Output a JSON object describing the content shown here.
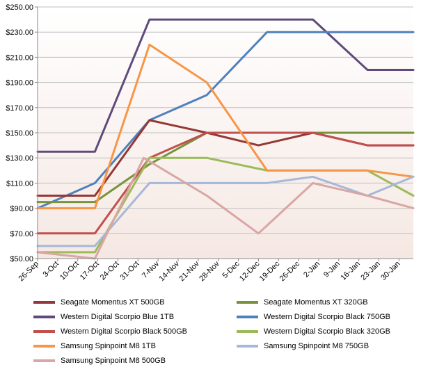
{
  "chart_data": {
    "type": "line",
    "title": "",
    "xlabel": "",
    "ylabel": "",
    "ylim": [
      50,
      250
    ],
    "y_ticks": [
      50,
      70,
      90,
      110,
      130,
      150,
      170,
      190,
      210,
      230,
      250
    ],
    "y_tick_labels": [
      "$50.00",
      "$70.00",
      "$90.00",
      "$110.00",
      "$130.00",
      "$150.00",
      "$170.00",
      "$190.00",
      "$210.00",
      "$230.00",
      "$250.00"
    ],
    "x_ticks": [
      "26-Sep",
      "3-Oct",
      "10-Oct",
      "17-Oct",
      "24-Oct",
      "31-Oct",
      "7-Nov",
      "14-Nov",
      "21-Nov",
      "28-Nov",
      "5-Dec",
      "12-Dec",
      "19-Dec",
      "26-Dec",
      "2-Jan",
      "9-Jan",
      "16-Jan",
      "23-Jan",
      "30-Jan"
    ],
    "xlim": [
      "26-Sep",
      "4-Feb"
    ],
    "grid": "horizontal",
    "background_gradient": [
      "#ffffff",
      "#f5e8e3"
    ],
    "legend_position": "bottom",
    "series": [
      {
        "name": "Seagate Momentus XT 500GB",
        "color": "#953735",
        "x": [
          "26-Sep",
          "16-Oct",
          "4-Nov",
          "24-Nov",
          "12-Dec",
          "31-Dec",
          "19-Jan",
          "4-Feb"
        ],
        "values": [
          100,
          100,
          160,
          150,
          140,
          150,
          140,
          140
        ]
      },
      {
        "name": "Seagate Momentus XT 320GB",
        "color": "#77933c",
        "x": [
          "26-Sep",
          "16-Oct",
          "4-Nov",
          "24-Nov",
          "12-Dec",
          "31-Dec",
          "19-Jan",
          "4-Feb"
        ],
        "values": [
          95,
          95,
          125,
          150,
          150,
          150,
          150,
          150
        ]
      },
      {
        "name": "Western Digital Scorpio Blue 1TB",
        "color": "#604a7b",
        "x": [
          "26-Sep",
          "16-Oct",
          "4-Nov",
          "24-Nov",
          "12-Dec",
          "31-Dec",
          "19-Jan",
          "4-Feb"
        ],
        "values": [
          135,
          135,
          240,
          240,
          240,
          240,
          200,
          200
        ]
      },
      {
        "name": "Western Digital Scorpio Black 750GB",
        "color": "#4f81bd",
        "x": [
          "26-Sep",
          "16-Oct",
          "4-Nov",
          "24-Nov",
          "15-Dec",
          "31-Dec",
          "19-Jan",
          "4-Feb"
        ],
        "values": [
          90,
          110,
          160,
          180,
          230,
          230,
          230,
          230
        ]
      },
      {
        "name": "Western Digital Scorpio Black 500GB",
        "color": "#c0504d",
        "x": [
          "26-Sep",
          "16-Oct",
          "4-Nov",
          "24-Nov",
          "12-Dec",
          "31-Dec",
          "19-Jan",
          "4-Feb"
        ],
        "values": [
          70,
          70,
          130,
          150,
          150,
          150,
          140,
          140
        ]
      },
      {
        "name": "Western Digital Scorpio Black 320GB",
        "color": "#9bbb59",
        "x": [
          "26-Sep",
          "16-Oct",
          "4-Nov",
          "24-Nov",
          "15-Dec",
          "31-Dec",
          "19-Jan",
          "4-Feb"
        ],
        "values": [
          55,
          55,
          130,
          130,
          120,
          120,
          120,
          100
        ]
      },
      {
        "name": "Samsung Spinpoint M8 1TB",
        "color": "#f79646",
        "x": [
          "26-Sep",
          "16-Oct",
          "4-Nov",
          "24-Nov",
          "15-Dec",
          "31-Dec",
          "19-Jan",
          "4-Feb"
        ],
        "values": [
          90,
          90,
          220,
          190,
          120,
          120,
          120,
          115
        ]
      },
      {
        "name": "Samsung Spinpoint M8 750GB",
        "color": "#a6b8d8",
        "x": [
          "26-Sep",
          "16-Oct",
          "4-Nov",
          "24-Nov",
          "15-Dec",
          "31-Dec",
          "19-Jan",
          "4-Feb"
        ],
        "values": [
          60,
          60,
          110,
          110,
          110,
          115,
          100,
          115
        ]
      },
      {
        "name": "Samsung Spinpoint M8 500GB",
        "color": "#d9a6a4",
        "x": [
          "26-Sep",
          "16-Oct",
          "2-Nov",
          "24-Nov",
          "12-Dec",
          "31-Dec",
          "19-Jan",
          "4-Feb"
        ],
        "values": [
          55,
          50,
          130,
          100,
          70,
          110,
          100,
          90
        ]
      }
    ]
  }
}
